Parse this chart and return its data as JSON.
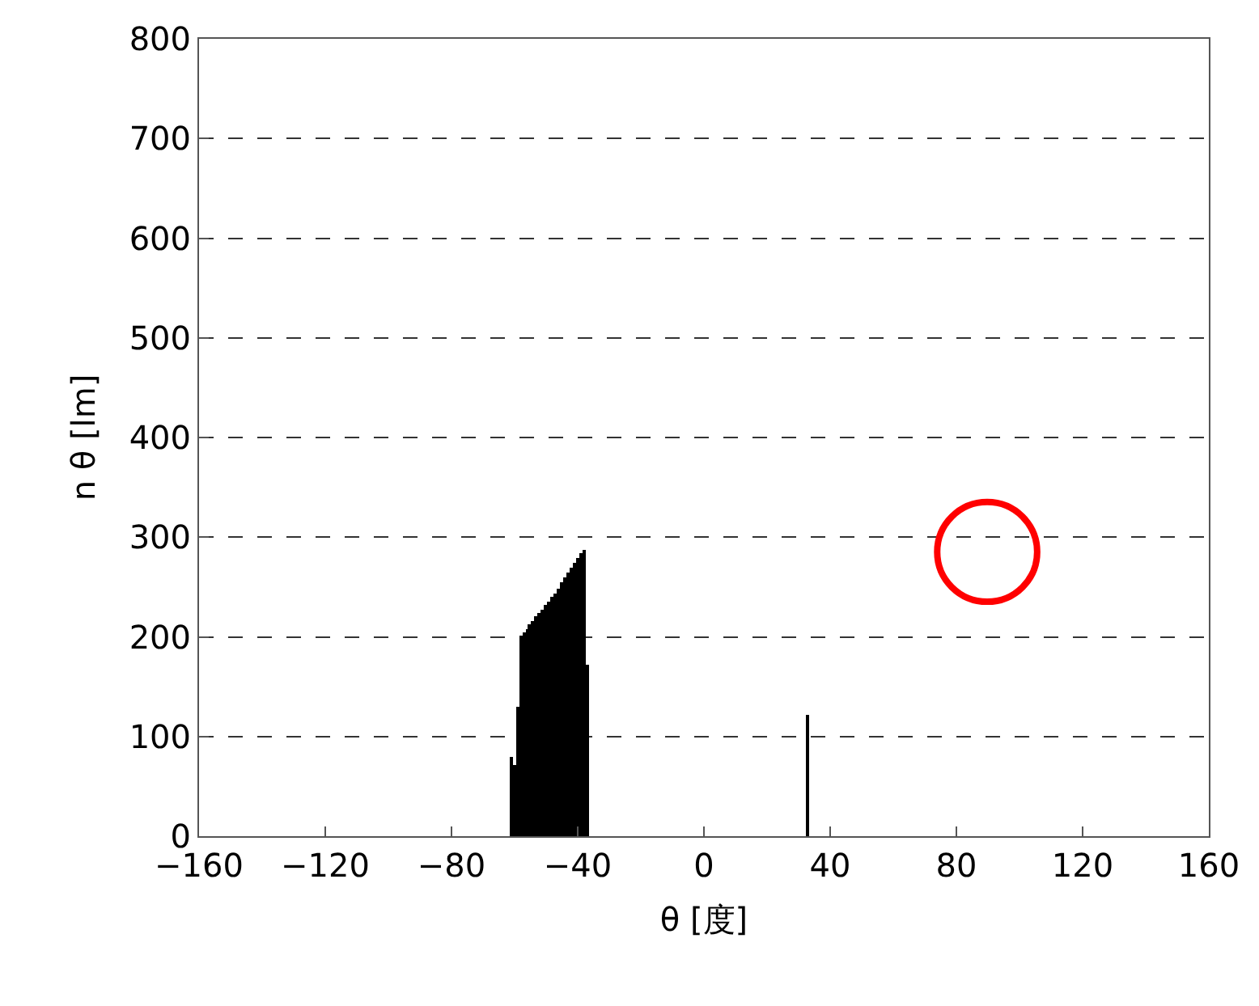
{
  "chart_data": {
    "type": "bar",
    "xlabel": "θ [度]",
    "ylabel": "n θ [lm]",
    "x": [
      -61,
      -60,
      -59,
      -58,
      -57,
      -56,
      -55,
      -54,
      -53,
      -52,
      -51,
      -50,
      -49,
      -48,
      -47,
      -46,
      -45,
      -44,
      -43,
      -42,
      -41,
      -40,
      -39,
      -38,
      -37,
      33
    ],
    "series": [
      {
        "color": "#000000",
        "values": [
          80,
          71,
          130,
          202,
          205,
          208,
          212,
          216,
          220,
          224,
          228,
          232,
          236,
          240,
          244,
          249,
          254,
          259,
          264,
          269,
          274,
          279,
          284,
          288,
          172,
          122
        ]
      }
    ],
    "xlim": [
      -160,
      160
    ],
    "xticks": [
      -160,
      -120,
      -80,
      -40,
      0,
      40,
      80,
      120,
      160
    ],
    "ylim": [
      0,
      800
    ],
    "yticks": [
      0,
      100,
      200,
      300,
      400,
      500,
      600,
      700,
      800
    ],
    "grid": "y"
  }
}
